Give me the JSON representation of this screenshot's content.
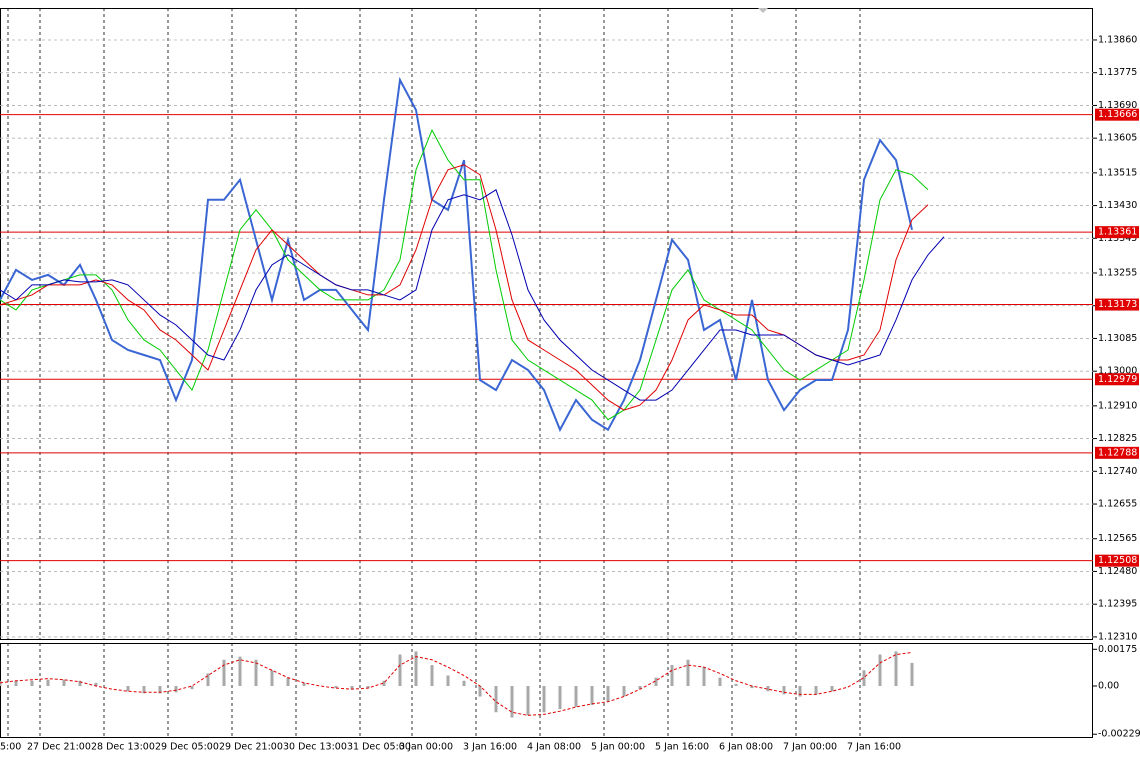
{
  "chart_data": [
    {
      "type": "line",
      "xlim": [
        0,
        68.3125
      ],
      "xticks": [
        {
          "value": 0.5,
          "label": "5:00"
        },
        {
          "value": 2.5,
          "label": "27 Dec 21:00"
        },
        {
          "value": 6.5,
          "label": "28 Dec 13:00"
        },
        {
          "value": 10.5,
          "label": "29 Dec 05:00"
        },
        {
          "value": 14.5,
          "label": "29 Dec 21:00"
        },
        {
          "value": 18.5,
          "label": "30 Dec 13:00"
        },
        {
          "value": 22.5,
          "label": "31 Dec 05:00"
        },
        {
          "value": 25.75,
          "label": "3 Jan 00:00"
        },
        {
          "value": 29.75,
          "label": "3 Jan 16:00"
        },
        {
          "value": 33.75,
          "label": "4 Jan 08:00"
        },
        {
          "value": 37.75,
          "label": "5 Jan 00:00"
        },
        {
          "value": 41.75,
          "label": "5 Jan 16:00"
        },
        {
          "value": 45.75,
          "label": "6 Jan 08:00"
        },
        {
          "value": 49.75,
          "label": "7 Jan 00:00"
        },
        {
          "value": 53.75,
          "label": "7 Jan 16:00"
        }
      ],
      "ylim": [
        1.12302,
        1.13943
      ],
      "yticks": [
        {
          "value": 1.1386,
          "label": "1.13860"
        },
        1.13775,
        {
          "value": 1.1369,
          "label": "1.13690"
        },
        1.13605,
        1.13515,
        {
          "value": 1.1343,
          "label": "1.13430"
        },
        1.13345,
        1.13255,
        {
          "value": 1.1317,
          "label": "1.13170"
        },
        1.13085,
        {
          "value": 1.13,
          "label": "1.13000"
        },
        {
          "value": 1.1291,
          "label": "1.12910"
        },
        1.12825,
        {
          "value": 1.1274,
          "label": "1.12740"
        },
        1.12655,
        1.12565,
        {
          "value": 1.1248,
          "label": "1.12480"
        },
        1.12395,
        {
          "value": 1.1231,
          "label": "1.12310"
        }
      ],
      "grid": true,
      "series": [
        {
          "color": "#3a66d4",
          "values": [
            1.13185,
            1.13263,
            1.13237,
            1.1325,
            1.13224,
            1.13276,
            1.13185,
            1.13081,
            1.13055,
            1.13042,
            1.13029,
            1.12925,
            1.13029,
            1.13445,
            1.13445,
            1.13497,
            1.13341,
            1.13185,
            1.13341,
            1.13185,
            1.13211,
            1.13211,
            1.13159,
            1.13107,
            1.13445,
            1.13756,
            1.13678,
            1.13445,
            1.13419,
            1.13548,
            1.12977,
            1.12951,
            1.13029,
            1.13003,
            1.12951,
            1.12848,
            1.12925,
            1.12874,
            1.12848,
            1.12925,
            1.13029,
            1.13185,
            1.13341,
            1.13289,
            1.13107,
            1.13133,
            1.12977,
            1.13185,
            1.12977,
            1.12899,
            1.12951,
            1.12977,
            1.12977,
            1.13107,
            1.13497,
            1.136,
            1.13548,
            1.13367,
            null,
            null
          ]
        },
        {
          "color": "#00cc00",
          "values": [
            1.13185,
            1.13159,
            1.13211,
            1.13224,
            1.13237,
            1.1325,
            1.1325,
            1.13211,
            1.13133,
            1.13081,
            1.13055,
            1.13003,
            1.12951,
            1.13055,
            1.13211,
            1.13367,
            1.13419,
            1.13367,
            1.13289,
            1.1325,
            1.13211,
            1.13185,
            1.13185,
            1.13185,
            1.13211,
            1.13289,
            1.13523,
            1.13626,
            1.13548,
            1.13497,
            1.13497,
            1.13263,
            1.13081,
            1.13029,
            1.13003,
            1.12977,
            1.12951,
            1.12925,
            1.12874,
            1.12899,
            1.12951,
            1.13081,
            1.13211,
            1.13263,
            1.13185,
            1.13159,
            1.13133,
            1.13107,
            1.13055,
            1.13003,
            1.12977,
            1.13003,
            1.13029,
            1.13055,
            1.13237,
            1.13445,
            1.13523,
            1.1351,
            1.13471,
            null
          ]
        },
        {
          "color": "#e00000",
          "values": [
            1.13172,
            1.13185,
            1.13198,
            1.13224,
            1.13224,
            1.13224,
            1.13237,
            1.13224,
            1.13185,
            1.13159,
            1.13107,
            1.13081,
            1.13042,
            1.13003,
            1.13107,
            1.13211,
            1.13315,
            1.13367,
            1.13328,
            1.13289,
            1.1325,
            1.13224,
            1.13211,
            1.13198,
            1.13198,
            1.13224,
            1.13315,
            1.13445,
            1.13523,
            1.13536,
            1.1351,
            1.13367,
            1.13185,
            1.13081,
            1.13055,
            1.13029,
            1.13003,
            1.12964,
            1.12925,
            1.12899,
            1.12912,
            1.12951,
            1.13029,
            1.13133,
            1.13172,
            1.13159,
            1.13146,
            1.13146,
            1.13107,
            1.13094,
            1.13068,
            1.13042,
            1.13029,
            1.13029,
            1.13042,
            1.13107,
            1.13289,
            1.13393,
            1.13432,
            null
          ]
        },
        {
          "color": "#0000b0",
          "values": [
            1.13211,
            1.13185,
            1.13224,
            1.13224,
            1.13237,
            1.13232,
            1.13232,
            1.13237,
            1.13224,
            1.13185,
            1.13146,
            1.1312,
            1.13081,
            1.13042,
            1.13029,
            1.13107,
            1.13211,
            1.13276,
            1.13302,
            1.13276,
            1.1325,
            1.13224,
            1.13211,
            1.13211,
            1.13198,
            1.13185,
            1.13211,
            1.13367,
            1.13445,
            1.13458,
            1.13445,
            1.13471,
            1.13354,
            1.13211,
            1.13133,
            1.13081,
            1.13042,
            1.13003,
            1.12977,
            1.12951,
            1.12925,
            1.12925,
            1.12951,
            1.13003,
            1.13055,
            1.13107,
            1.13107,
            1.13094,
            1.13094,
            1.13094,
            1.13068,
            1.13042,
            1.13029,
            1.13016,
            1.13029,
            1.13042,
            1.13133,
            1.13237,
            1.13302,
            1.13349
          ]
        }
      ],
      "levels": {
        "color": "#e00000",
        "values": [
          1.13666,
          1.13361,
          1.13173,
          1.12979,
          1.12788,
          1.12508
        ]
      }
    },
    {
      "type": "macd",
      "ylim": [
        -0.00243,
        0.00205
      ],
      "yticks": [
        0.00175,
        {
          "value": 0,
          "label": "0.00"
        },
        -0.002298
      ],
      "series": [
        {
          "color": "#a8a8a8",
          "values": [
            0.00025,
            0.00025,
            0.00025,
            0.0003,
            0.0003,
            0.00025,
            0.00015,
            0,
            -0.00025,
            -0.00035,
            -0.00035,
            -0.0003,
            -0.00015,
            0.0006,
            0.00125,
            0.0014,
            0.00125,
            0.00075,
            0.0004,
            0.00015,
            0,
            -0.0001,
            -0.00015,
            -0.0001,
            0.00025,
            0.0015,
            0.00165,
            0.001,
            0.0005,
            0.00025,
            -0.0005,
            -0.00125,
            -0.0015,
            -0.0014,
            -0.00125,
            -0.0011,
            -0.001,
            -0.0009,
            -0.00075,
            -0.0005,
            -0.00015,
            0.0004,
            0.001,
            0.00125,
            0.0009,
            0.0004,
            0.0001,
            -0.0001,
            -0.00025,
            -0.0004,
            -0.0005,
            -0.0004,
            -0.00025,
            0,
            0.00075,
            0.0015,
            0.00165,
            0.0011
          ]
        },
        {
          "color": "#e00000",
          "values": [
            0.00015,
            0.00025,
            0.0003,
            0.00035,
            0.0003,
            0.0002,
            0,
            -0.00015,
            -0.00025,
            -0.0003,
            -0.0003,
            -0.0002,
            0,
            0.0005,
            0.001,
            0.00125,
            0.0011,
            0.00075,
            0.0004,
            0.00015,
            0,
            -0.0001,
            -0.00015,
            -0.0001,
            0.00015,
            0.001,
            0.0014,
            0.00125,
            0.0009,
            0.0005,
            0,
            -0.00075,
            -0.00125,
            -0.0014,
            -0.00135,
            -0.0012,
            -0.001,
            -0.00085,
            -0.00075,
            -0.0005,
            -0.00015,
            0.00025,
            0.00075,
            0.001,
            0.0009,
            0.0006,
            0.00025,
            0,
            -0.00015,
            -0.0003,
            -0.0004,
            -0.0004,
            -0.00025,
            -5e-05,
            0.0004,
            0.0011,
            0.0015,
            0.0016
          ]
        }
      ]
    }
  ]
}
